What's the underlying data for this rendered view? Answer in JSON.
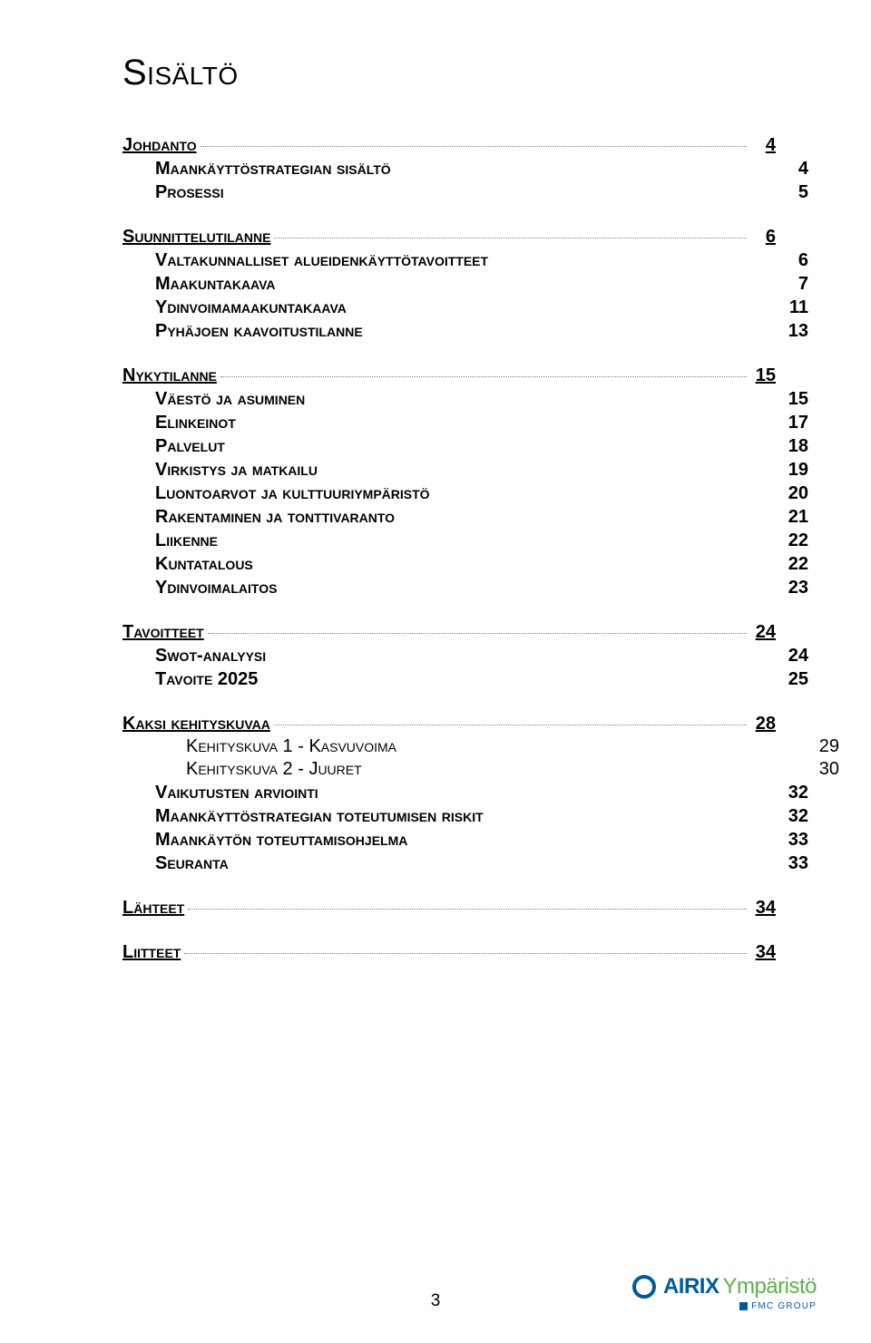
{
  "colors": {
    "text": "#000000",
    "dots": "#7f7f7f",
    "brandBlue": "#005a9c",
    "brandGreen": "#5fb04a",
    "background": "#ffffff"
  },
  "typography": {
    "title_fontsize": 40,
    "section_fontsize": 20,
    "sub_fontsize": 20,
    "font_family": "Arial"
  },
  "title": "Sisältö",
  "toc": [
    {
      "type": "sec",
      "label": "Johdanto",
      "page": "4"
    },
    {
      "type": "sub",
      "label": "Maankäyttöstrategian sisältö",
      "page": "4"
    },
    {
      "type": "sub",
      "label": "Prosessi",
      "page": "5"
    },
    {
      "type": "sec",
      "label": "Suunnittelutilanne",
      "page": "6"
    },
    {
      "type": "sub",
      "label": "Valtakunnalliset alueidenkäyttötavoitteet",
      "page": "6"
    },
    {
      "type": "sub",
      "label": "Maakuntakaava",
      "page": "7"
    },
    {
      "type": "sub",
      "label": "Ydinvoimamaakuntakaava",
      "page": "11"
    },
    {
      "type": "sub",
      "label": "Pyhäjoen kaavoitustilanne",
      "page": "13"
    },
    {
      "type": "sec",
      "label": "Nykytilanne",
      "page": "15"
    },
    {
      "type": "sub",
      "label": "Väestö ja asuminen",
      "page": "15"
    },
    {
      "type": "sub",
      "label": "Elinkeinot",
      "page": "17"
    },
    {
      "type": "sub",
      "label": "Palvelut",
      "page": "18"
    },
    {
      "type": "sub",
      "label": "Virkistys ja matkailu",
      "page": "19"
    },
    {
      "type": "sub",
      "label": "Luontoarvot ja kulttuuriympäristö",
      "page": "20"
    },
    {
      "type": "sub",
      "label": "Rakentaminen ja tonttivaranto",
      "page": "21"
    },
    {
      "type": "sub",
      "label": "Liikenne",
      "page": "22"
    },
    {
      "type": "sub",
      "label": "Kuntatalous",
      "page": "22"
    },
    {
      "type": "sub",
      "label": "Ydinvoimalaitos",
      "page": "23"
    },
    {
      "type": "sec",
      "label": "Tavoitteet",
      "page": "24"
    },
    {
      "type": "sub",
      "label": "Swot-analyysi",
      "page": "24"
    },
    {
      "type": "sub",
      "label": "Tavoite 2025",
      "page": "25"
    },
    {
      "type": "sec",
      "label": "Kaksi kehityskuvaa",
      "page": "28"
    },
    {
      "type": "subsub",
      "label": "Kehityskuva 1 - Kasvuvoima",
      "page": "29"
    },
    {
      "type": "subsub",
      "label": "Kehityskuva 2 - Juuret",
      "page": "30"
    },
    {
      "type": "sub",
      "label": "Vaikutusten arviointi",
      "page": "32"
    },
    {
      "type": "sub",
      "label": "Maankäyttöstrategian toteutumisen riskit",
      "page": "32"
    },
    {
      "type": "sub",
      "label": "Maankäytön toteuttamisohjelma",
      "page": "33"
    },
    {
      "type": "sub",
      "label": "Seuranta",
      "page": "33"
    },
    {
      "type": "sec",
      "label": "Lähteet",
      "page": "34"
    },
    {
      "type": "sec",
      "label": "Liitteet",
      "page": "34"
    }
  ],
  "footer": {
    "pageNumber": "3",
    "brand1": "AIRIX",
    "brand2": "Ympäristö",
    "sub": "FMC GROUP"
  }
}
